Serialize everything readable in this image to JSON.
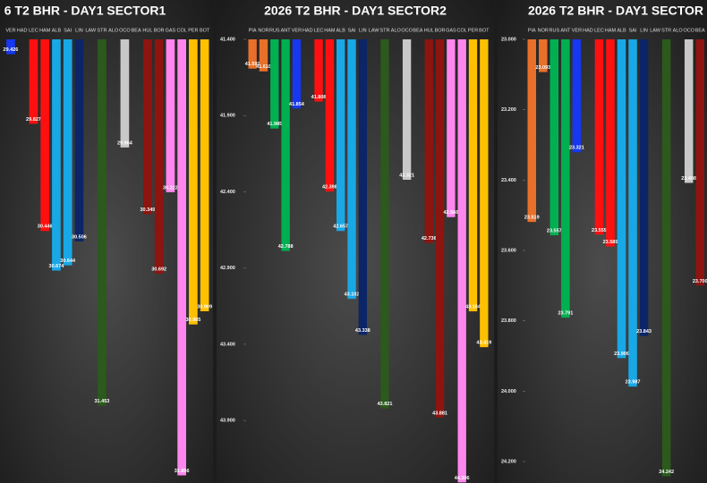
{
  "chart_data": [
    {
      "type": "bar",
      "title": "6 T2 BHR - DAY1 SECTOR1",
      "y_inverted": true,
      "categories": [
        "VER",
        "HAD",
        "LEC",
        "HAM",
        "ALB",
        "SAI",
        "LIN",
        "LAW",
        "STR",
        "ALO",
        "OCO",
        "BEA",
        "HUL",
        "BOR",
        "GAS",
        "COL",
        "PER",
        "BOT"
      ],
      "values": [
        29.426,
        null,
        29.827,
        30.446,
        30.674,
        30.644,
        30.506,
        null,
        31.453,
        null,
        29.964,
        null,
        30.349,
        30.692,
        30.222,
        31.856,
        30.985,
        30.909
      ],
      "value_labels": [
        "29.426",
        null,
        "29.827",
        "30.446",
        "30.674",
        "30.644",
        "30.506",
        null,
        "31.453",
        null,
        "29.964",
        null,
        "30.349",
        "30.692",
        "30.222",
        "31.856",
        "30.985",
        "30.909"
      ],
      "colors": [
        "#1638f0",
        null,
        "#ff1010",
        "#ff1010",
        "#19a8e6",
        "#19a8e6",
        "#0b2566",
        null,
        "#2b5a1c",
        null,
        "#c8c8c8",
        null,
        "#8e1410",
        "#8e1410",
        "#ff86ee",
        "#ff86ee",
        "#ffc000",
        "#ffc000"
      ],
      "ylim": [
        29.34,
        31.9
      ]
    },
    {
      "type": "bar",
      "title": "2026 T2 BHR - DAY1 SECTOR2",
      "y_inverted": true,
      "categories": [
        "PIA",
        "NOR",
        "RUS",
        "ANT",
        "VER",
        "HAD",
        "LEC",
        "HAM",
        "ALB",
        "SAI",
        "LIN",
        "LAW",
        "STR",
        "ALO",
        "OCO",
        "BEA",
        "HUL",
        "BOR",
        "GAS",
        "COL",
        "PER",
        "BOT"
      ],
      "values": [
        41.592,
        41.61,
        41.985,
        42.788,
        41.854,
        null,
        41.808,
        42.398,
        42.657,
        43.102,
        43.338,
        null,
        43.821,
        null,
        42.321,
        null,
        42.736,
        43.881,
        42.566,
        44.306,
        43.184,
        43.419
      ],
      "value_labels": [
        "41.592",
        "41.610",
        "41.985",
        "42.788",
        "41.854",
        null,
        "41.808",
        "42.398",
        "42.657",
        "43.102",
        "43.338",
        null,
        "43.821",
        null,
        "42.321",
        null,
        "42.736",
        "43.881",
        "42.566",
        "44.306",
        "43.184",
        "43.419"
      ],
      "colors": [
        "#e8702a",
        "#e8702a",
        "#00b050",
        "#00b050",
        "#1638f0",
        null,
        "#ff1010",
        "#ff1010",
        "#19a8e6",
        "#19a8e6",
        "#0b2566",
        null,
        "#2b5a1c",
        null,
        "#c8c8c8",
        null,
        "#8e1410",
        "#8e1410",
        "#ff86ee",
        "#ff86ee",
        "#ffc000",
        "#ffc000"
      ],
      "ylim": [
        41.4,
        44.31
      ],
      "yticks": [
        {
          "value": 41.4,
          "label": "41.400"
        },
        {
          "value": 41.9,
          "label": "41.900"
        },
        {
          "value": 42.4,
          "label": "42.400"
        },
        {
          "value": 42.9,
          "label": "42.900"
        },
        {
          "value": 43.4,
          "label": "43.400"
        },
        {
          "value": 43.9,
          "label": "43.900"
        }
      ]
    },
    {
      "type": "bar",
      "title": "2026 T2 BHR - DAY1 SECTOR",
      "y_inverted": true,
      "categories": [
        "PIA",
        "NOR",
        "RUS",
        "ANT",
        "VER",
        "HAD",
        "LEC",
        "HAM",
        "ALB",
        "SAI",
        "LIN",
        "LAW",
        "STR",
        "ALO",
        "OCO",
        "BEA"
      ],
      "values": [
        23.519,
        23.093,
        23.557,
        23.791,
        23.321,
        null,
        23.555,
        23.589,
        23.906,
        23.987,
        23.843,
        null,
        24.242,
        null,
        23.408,
        23.7
      ],
      "value_labels": [
        "23.519",
        "23.093",
        "23.557",
        "23.791",
        "23.321",
        null,
        "23.555",
        "23.589",
        "23.906",
        "23.987",
        "23.843",
        null,
        "24.242",
        null,
        "23.408",
        "23.700"
      ],
      "colors": [
        "#e8702a",
        "#e8702a",
        "#00b050",
        "#00b050",
        "#1638f0",
        null,
        "#ff1010",
        "#ff1010",
        "#19a8e6",
        "#19a8e6",
        "#0b2566",
        null,
        "#2b5a1c",
        null,
        "#c8c8c8",
        "#8e1410"
      ],
      "ylim": [
        23.0,
        24.261
      ],
      "yticks": [
        {
          "value": 23.0,
          "label": "23.000"
        },
        {
          "value": 23.2,
          "label": "23.200"
        },
        {
          "value": 23.4,
          "label": "23.400"
        },
        {
          "value": 23.6,
          "label": "23.600"
        },
        {
          "value": 23.8,
          "label": "23.800"
        },
        {
          "value": 24.0,
          "label": "24.000"
        },
        {
          "value": 24.2,
          "label": "24.200"
        }
      ]
    }
  ]
}
